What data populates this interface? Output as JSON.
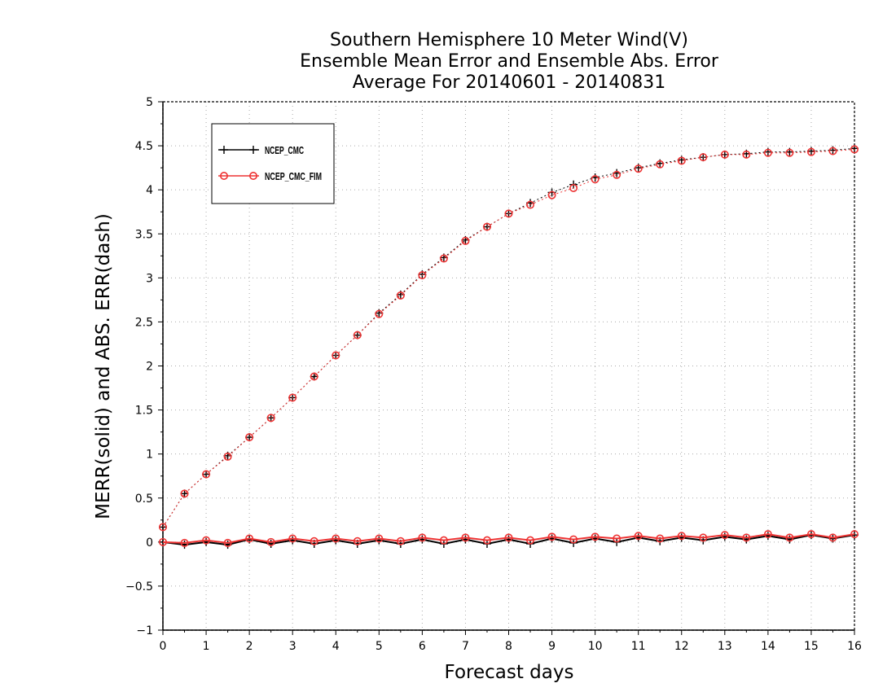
{
  "chart_data": {
    "type": "line",
    "title": [
      "Southern Hemisphere 10 Meter Wind(V)",
      "Ensemble Mean Error and Ensemble Abs. Error",
      "Average For 20140601 - 20140831"
    ],
    "xlabel": "Forecast days",
    "ylabel": "MERR(solid) and ABS. ERR(dash)",
    "xlim": [
      0,
      16
    ],
    "ylim": [
      -1,
      5
    ],
    "xticks": [
      0,
      1,
      2,
      3,
      4,
      5,
      6,
      7,
      8,
      9,
      10,
      11,
      12,
      13,
      14,
      15,
      16
    ],
    "yticks": [
      -1,
      -0.5,
      0,
      0.5,
      1,
      1.5,
      2,
      2.5,
      3,
      3.5,
      4,
      4.5,
      5
    ],
    "grid": true,
    "legend_position": "top-left",
    "x": [
      0,
      0.5,
      1,
      1.5,
      2,
      2.5,
      3,
      3.5,
      4,
      4.5,
      5,
      5.5,
      6,
      6.5,
      7,
      7.5,
      8,
      8.5,
      9,
      9.5,
      10,
      10.5,
      11,
      11.5,
      12,
      12.5,
      13,
      13.5,
      14,
      14.5,
      15,
      15.5,
      16
    ],
    "series": [
      {
        "name": "NCEP_CMC",
        "color": "#000000",
        "marker": "plus",
        "mean_error": [
          0.0,
          -0.03,
          0.0,
          -0.03,
          0.03,
          -0.02,
          0.02,
          -0.02,
          0.02,
          -0.02,
          0.02,
          -0.02,
          0.03,
          -0.02,
          0.03,
          -0.02,
          0.03,
          -0.02,
          0.04,
          -0.01,
          0.04,
          0.0,
          0.05,
          0.01,
          0.05,
          0.02,
          0.06,
          0.03,
          0.07,
          0.03,
          0.08,
          0.04,
          0.08
        ],
        "abs_error": [
          0.17,
          0.55,
          0.77,
          0.98,
          1.19,
          1.41,
          1.64,
          1.88,
          2.12,
          2.35,
          2.6,
          2.81,
          3.04,
          3.23,
          3.43,
          3.58,
          3.73,
          3.85,
          3.97,
          4.06,
          4.14,
          4.19,
          4.25,
          4.3,
          4.34,
          4.37,
          4.4,
          4.41,
          4.43,
          4.43,
          4.44,
          4.45,
          4.47
        ]
      },
      {
        "name": "NCEP_CMC_FIM",
        "color": "#ee3333",
        "marker": "circle",
        "mean_error": [
          0.0,
          -0.01,
          0.02,
          -0.01,
          0.04,
          0.0,
          0.04,
          0.01,
          0.04,
          0.01,
          0.04,
          0.01,
          0.05,
          0.02,
          0.05,
          0.02,
          0.05,
          0.02,
          0.06,
          0.03,
          0.06,
          0.04,
          0.07,
          0.04,
          0.07,
          0.05,
          0.08,
          0.05,
          0.09,
          0.05,
          0.09,
          0.05,
          0.09
        ],
        "abs_error": [
          0.17,
          0.55,
          0.77,
          0.97,
          1.19,
          1.41,
          1.64,
          1.88,
          2.12,
          2.35,
          2.59,
          2.8,
          3.03,
          3.22,
          3.42,
          3.58,
          3.73,
          3.83,
          3.94,
          4.02,
          4.12,
          4.17,
          4.24,
          4.29,
          4.33,
          4.37,
          4.4,
          4.4,
          4.42,
          4.42,
          4.43,
          4.44,
          4.46
        ]
      }
    ]
  }
}
